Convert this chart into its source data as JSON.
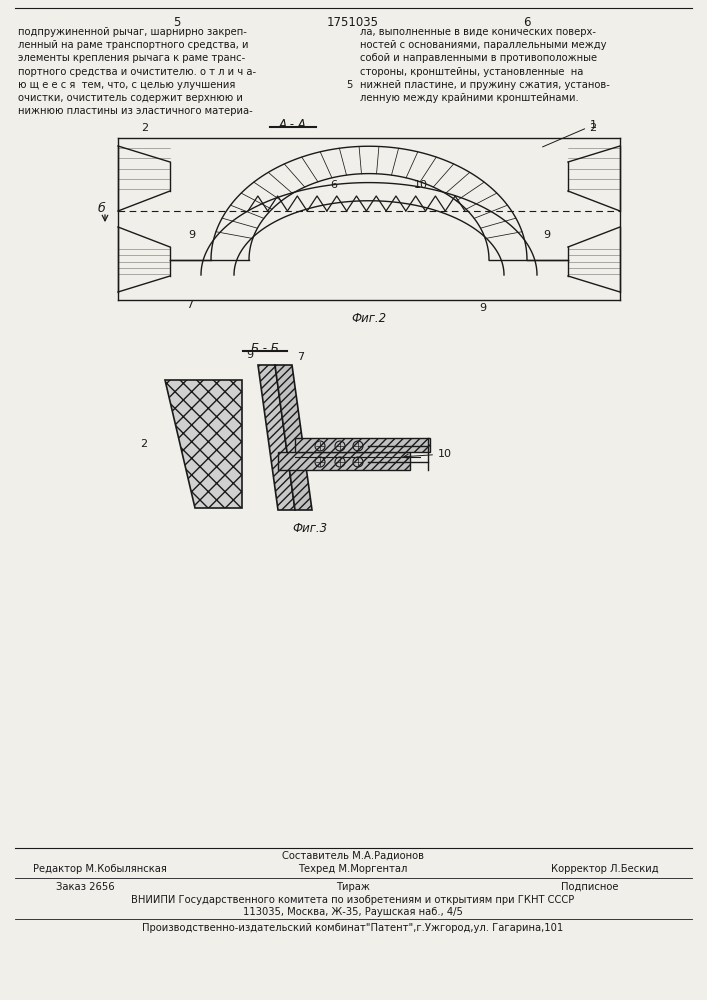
{
  "page_number_left": "5",
  "page_number_center": "1751035",
  "page_number_right": "6",
  "fig2_label": "А - А",
  "fig3_label": "Б - Б",
  "fig2_caption": "Фиг.2",
  "fig3_caption": "Фиг.3",
  "footer_editor": "Редактор М.Кобылянская",
  "footer_composer": "Составитель М.А.Радионов",
  "footer_techred": "Техред М.Моргентал",
  "footer_corrector": "Корректор Л.Бескид",
  "footer_order": "Заказ 2656",
  "footer_tirazh": "Тираж",
  "footer_podpisnoe": "Подписное",
  "footer_vniipи": "ВНИИПИ Государственного комитета по изобретениям и открытиям при ГКНТ СССР",
  "footer_address": "113035, Москва, Ж-35, Раушская наб., 4/5",
  "footer_print": "Производственно-издательский комбинат\"Патент\",г.Ужгород,ул. Гагарина,101",
  "bg_color": "#f0efea",
  "line_color": "#1a1a1a"
}
